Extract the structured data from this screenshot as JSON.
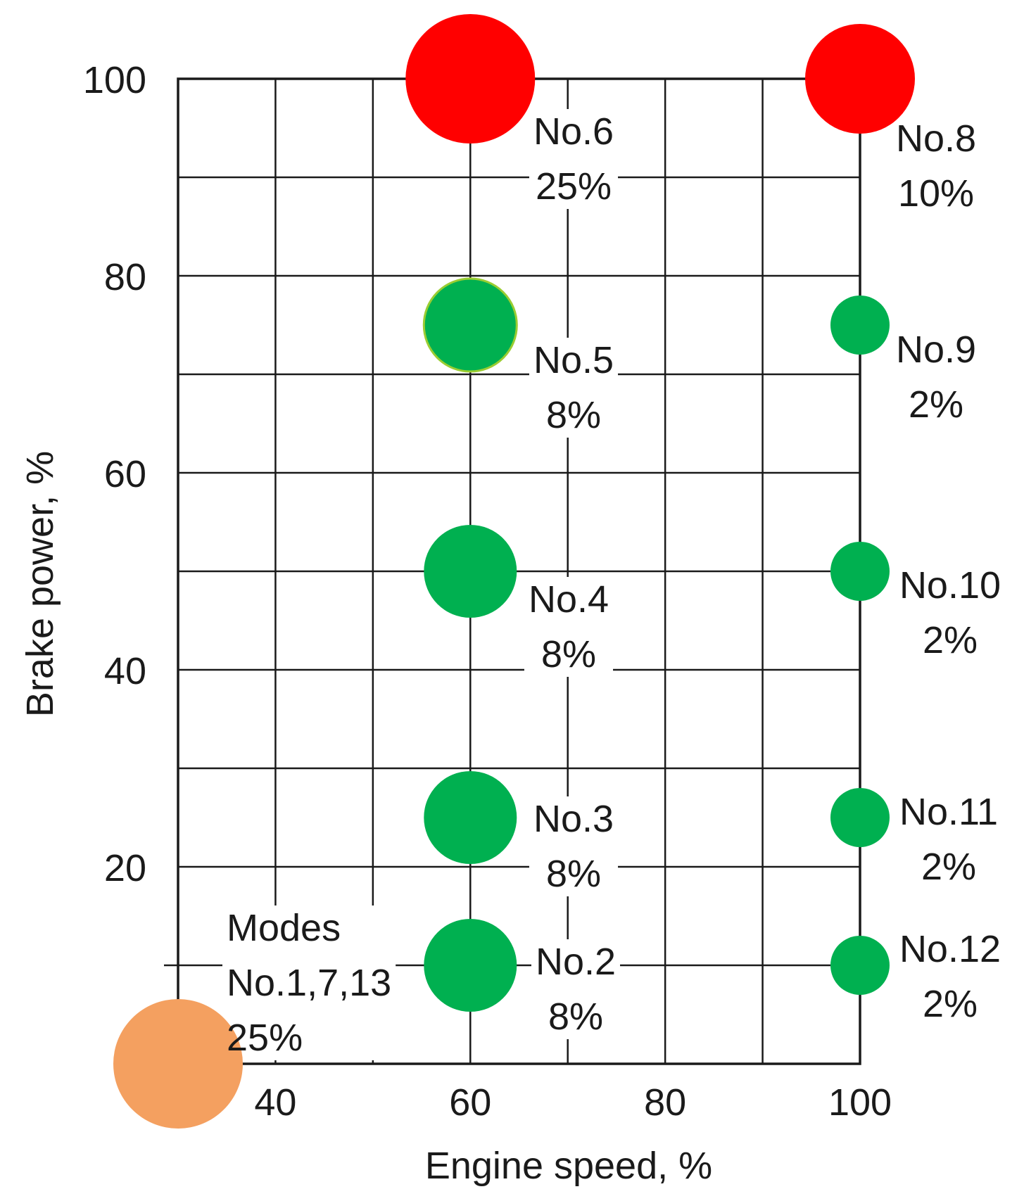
{
  "chart_data": {
    "type": "scatter",
    "title": "",
    "xlabel": "Engine speed, %",
    "ylabel": "Brake power, %",
    "xlim": [
      30,
      100
    ],
    "ylim": [
      0,
      100
    ],
    "x_ticks": [
      "40",
      "60",
      "80",
      "100"
    ],
    "y_ticks": [
      "20",
      "40",
      "60",
      "80",
      "100"
    ],
    "x_grid_step": 10,
    "y_grid_step": 10,
    "grid": true,
    "colors": {
      "high": "#ff0000",
      "mid": "#00b050",
      "idle": "#f4a060"
    },
    "points": [
      {
        "lines": [
          "No.6",
          "25%"
        ],
        "x": 60,
        "y": 100,
        "weight": 25,
        "color": "#ff0000"
      },
      {
        "lines": [
          "No.8",
          "10%"
        ],
        "x": 100,
        "y": 100,
        "weight": 10,
        "color": "#ff0000"
      },
      {
        "lines": [
          "No.5",
          "8%"
        ],
        "x": 60,
        "y": 75,
        "weight": 8,
        "color": "#00b050"
      },
      {
        "lines": [
          "No.9",
          "2%"
        ],
        "x": 100,
        "y": 75,
        "weight": 2,
        "color": "#00b050"
      },
      {
        "lines": [
          "No.4",
          "8%"
        ],
        "x": 60,
        "y": 50,
        "weight": 8,
        "color": "#00b050"
      },
      {
        "lines": [
          "No.10",
          "2%"
        ],
        "x": 100,
        "y": 50,
        "weight": 2,
        "color": "#00b050"
      },
      {
        "lines": [
          "No.3",
          "8%"
        ],
        "x": 60,
        "y": 25,
        "weight": 8,
        "color": "#00b050"
      },
      {
        "lines": [
          "No.11",
          "2%"
        ],
        "x": 100,
        "y": 25,
        "weight": 2,
        "color": "#00b050"
      },
      {
        "lines": [
          "No.2",
          "8%"
        ],
        "x": 60,
        "y": 10,
        "weight": 8,
        "color": "#00b050"
      },
      {
        "lines": [
          "No.12",
          "2%"
        ],
        "x": 100,
        "y": 10,
        "weight": 2,
        "color": "#00b050"
      },
      {
        "lines": [
          "Modes",
          "No.1,7,13",
          "25%"
        ],
        "x": 30,
        "y": 0,
        "weight": 25,
        "color": "#f4a060"
      }
    ]
  }
}
